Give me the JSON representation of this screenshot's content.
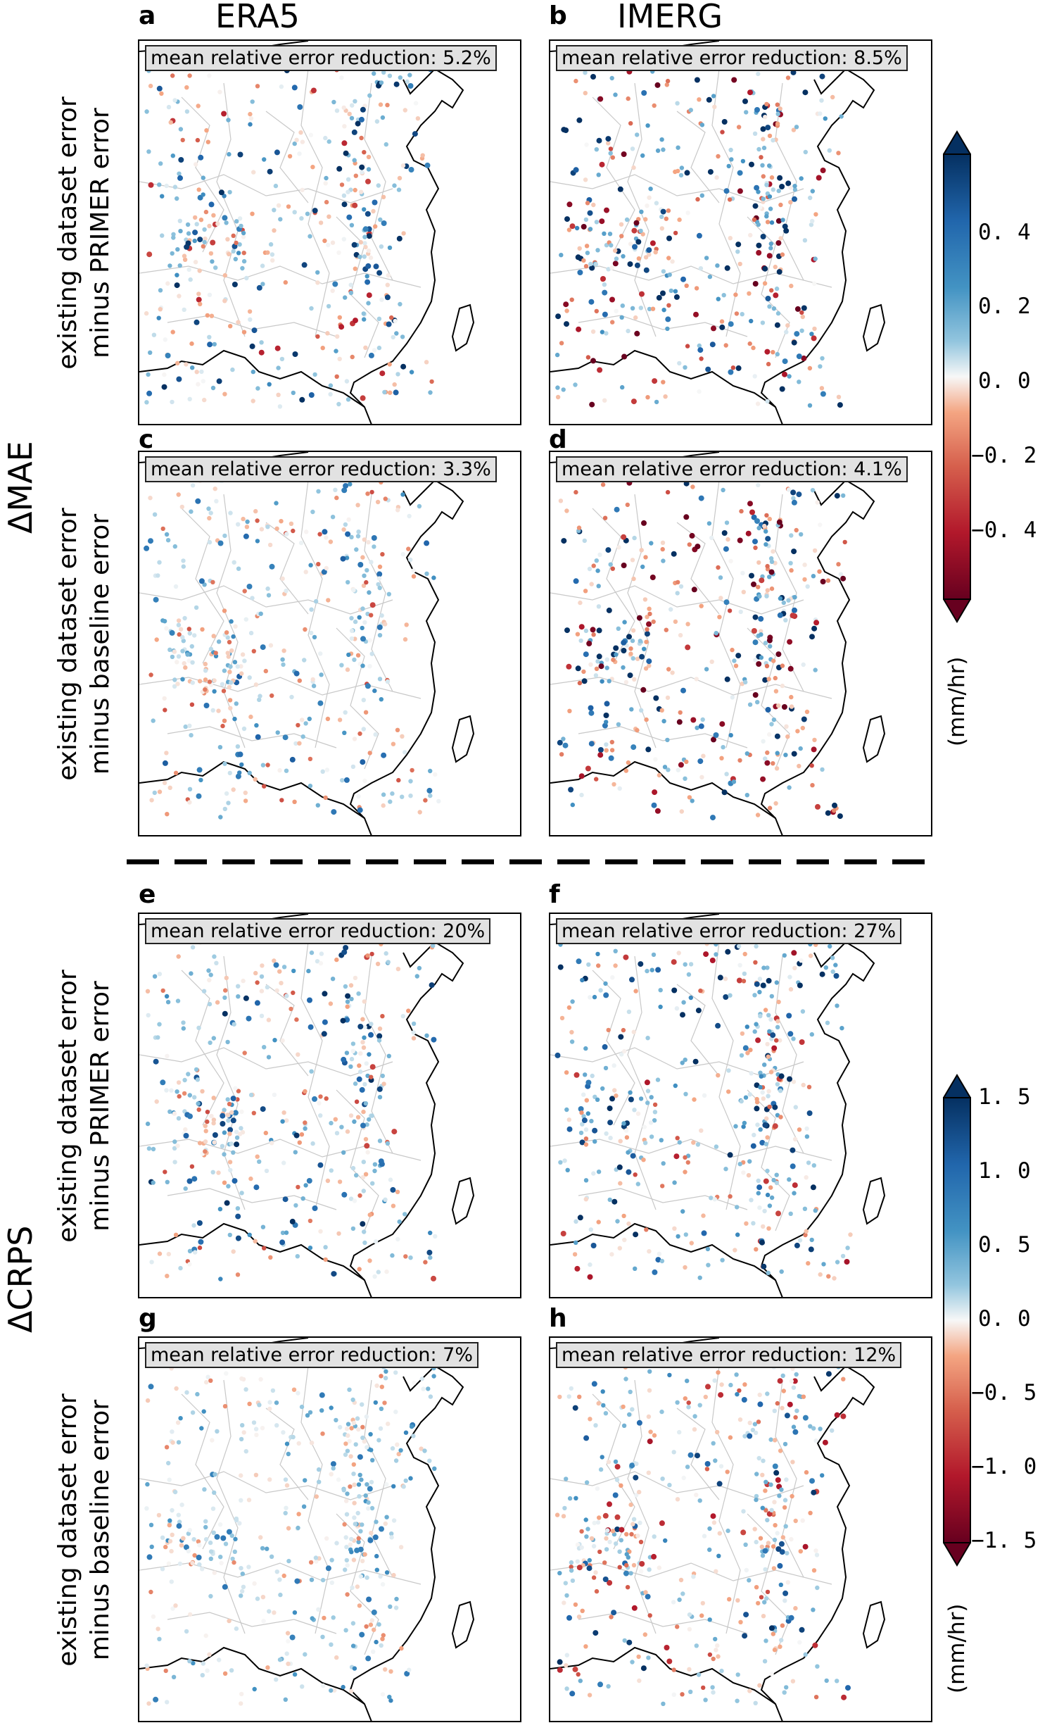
{
  "chart_data": {
    "type": "scatter",
    "description_columns": [
      "ERA5",
      "IMERG"
    ],
    "metrics": [
      {
        "name": "ΔMAE",
        "colorbar": {
          "ticks": [
            "0. 4",
            "0. 2",
            "0. 0",
            "−0. 2",
            "−0. 4"
          ],
          "tick_values": [
            0.4,
            0.2,
            0.0,
            -0.2,
            -0.4
          ],
          "range": [
            -0.55,
            0.55
          ],
          "unit": "(mm/hr)",
          "colormap": "RdBu"
        },
        "rows": [
          {
            "label_line1": "existing dataset error",
            "label_line2": "minus PRIMER error",
            "panels": [
              {
                "letter": "a",
                "dataset": "ERA5",
                "annotation": "mean relative error reduction: 5.2%",
                "mean_relative_error_reduction_pct": 5.2
              },
              {
                "letter": "b",
                "dataset": "IMERG",
                "annotation": "mean relative error reduction: 8.5%",
                "mean_relative_error_reduction_pct": 8.5
              }
            ]
          },
          {
            "label_line1": "existing dataset error",
            "label_line2": "minus baseline error",
            "panels": [
              {
                "letter": "c",
                "dataset": "ERA5",
                "annotation": "mean relative error reduction: 3.3%",
                "mean_relative_error_reduction_pct": 3.3
              },
              {
                "letter": "d",
                "dataset": "IMERG",
                "annotation": "mean relative error reduction: 4.1%",
                "mean_relative_error_reduction_pct": 4.1
              }
            ]
          }
        ]
      },
      {
        "name": "ΔCRPS",
        "colorbar": {
          "ticks": [
            "1. 5",
            "1. 0",
            "0. 5",
            "0. 0",
            "−0. 5",
            "−1. 0",
            "−1. 5"
          ],
          "tick_values": [
            1.5,
            1.0,
            0.5,
            0.0,
            -0.5,
            -1.0,
            -1.5
          ],
          "range": [
            -1.5,
            1.5
          ],
          "unit": "(mm/hr)",
          "colormap": "RdBu"
        },
        "rows": [
          {
            "label_line1": "existing dataset error",
            "label_line2": "minus PRIMER error",
            "panels": [
              {
                "letter": "e",
                "dataset": "ERA5",
                "annotation": "mean relative error reduction: 20%",
                "mean_relative_error_reduction_pct": 20
              },
              {
                "letter": "f",
                "dataset": "IMERG",
                "annotation": "mean relative error reduction: 27%",
                "mean_relative_error_reduction_pct": 27
              }
            ]
          },
          {
            "label_line1": "existing dataset error",
            "label_line2": "minus baseline error",
            "panels": [
              {
                "letter": "g",
                "dataset": "ERA5",
                "annotation": "mean relative error reduction: 7%",
                "mean_relative_error_reduction_pct": 7
              },
              {
                "letter": "h",
                "dataset": "IMERG",
                "annotation": "mean relative error reduction: 12%",
                "mean_relative_error_reduction_pct": 12
              }
            ]
          }
        ]
      }
    ]
  },
  "colors": {
    "neg_dark": "#67001f",
    "neg_mid": "#d6604d",
    "zero": "#f7f7f7",
    "pos_mid": "#4393c3",
    "pos_dark": "#053061"
  }
}
